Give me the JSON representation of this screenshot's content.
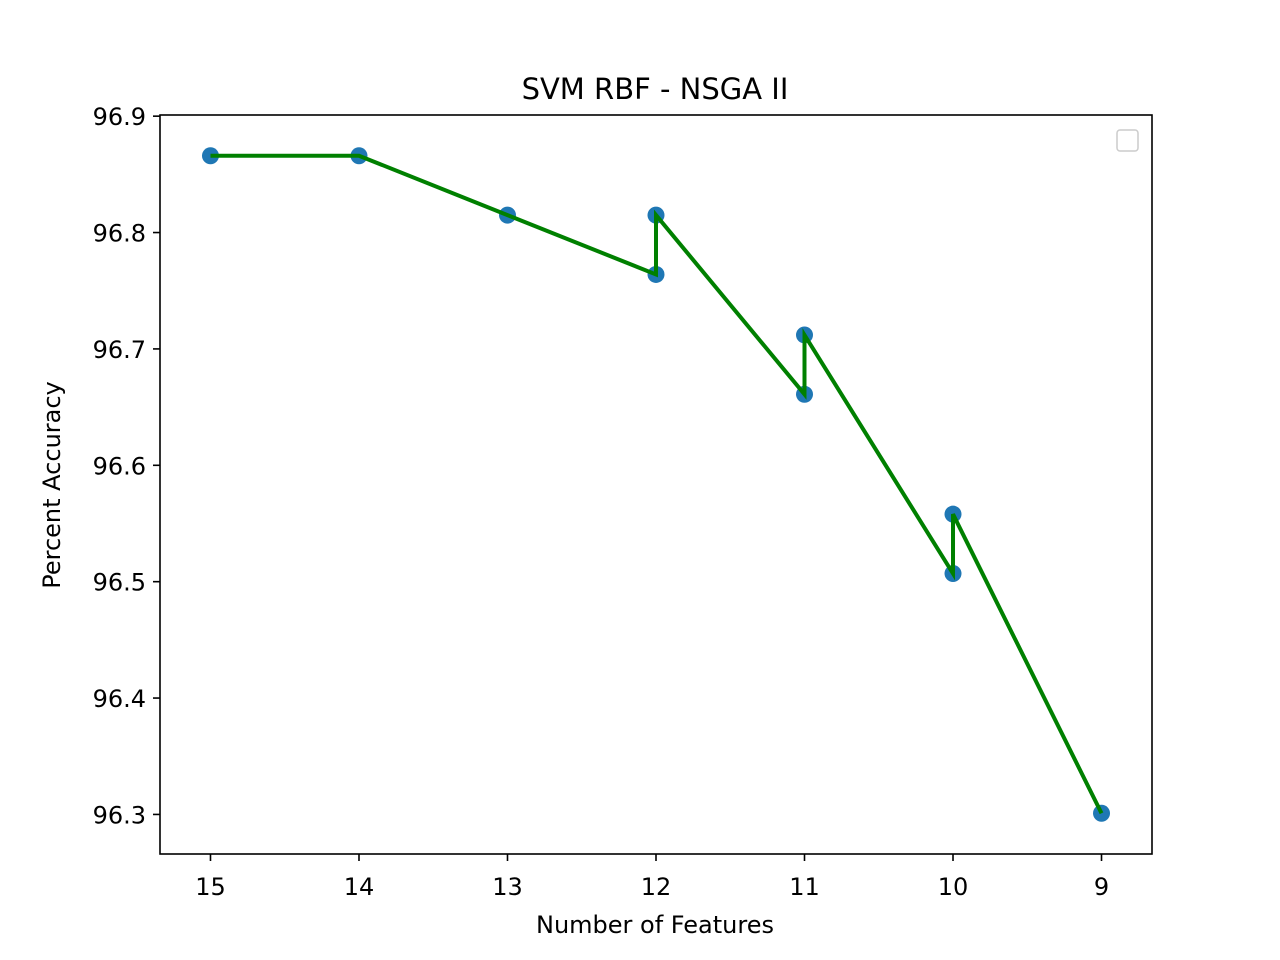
{
  "chart_data": {
    "type": "line",
    "title": "SVM RBF - NSGA II",
    "xlabel": "Number of Features",
    "ylabel": "Percent Accuracy",
    "x_inverted": true,
    "xlim": [
      15.34,
      8.66
    ],
    "ylim": [
      96.266,
      96.901
    ],
    "x_ticks": [
      15,
      14,
      13,
      12,
      11,
      10,
      9
    ],
    "y_ticks": [
      96.3,
      96.4,
      96.5,
      96.6,
      96.7,
      96.8,
      96.9
    ],
    "x_tick_labels": [
      "15",
      "14",
      "13",
      "12",
      "11",
      "10",
      "9"
    ],
    "y_tick_labels": [
      "96.3",
      "96.4",
      "96.5",
      "96.6",
      "96.7",
      "96.8",
      "96.9"
    ],
    "grid": false,
    "legend": {
      "placement": "top-right",
      "entries": []
    },
    "series": [
      {
        "marker_color": "#1f77b4",
        "line_color": "#008000",
        "points": [
          {
            "x": 15,
            "y": 96.866
          },
          {
            "x": 14,
            "y": 96.866
          },
          {
            "x": 13,
            "y": 96.815
          },
          {
            "x": 12,
            "y": 96.764
          },
          {
            "x": 12,
            "y": 96.815
          },
          {
            "x": 11,
            "y": 96.661
          },
          {
            "x": 11,
            "y": 96.712
          },
          {
            "x": 10,
            "y": 96.507
          },
          {
            "x": 10,
            "y": 96.558
          },
          {
            "x": 9,
            "y": 96.301
          }
        ]
      }
    ]
  }
}
